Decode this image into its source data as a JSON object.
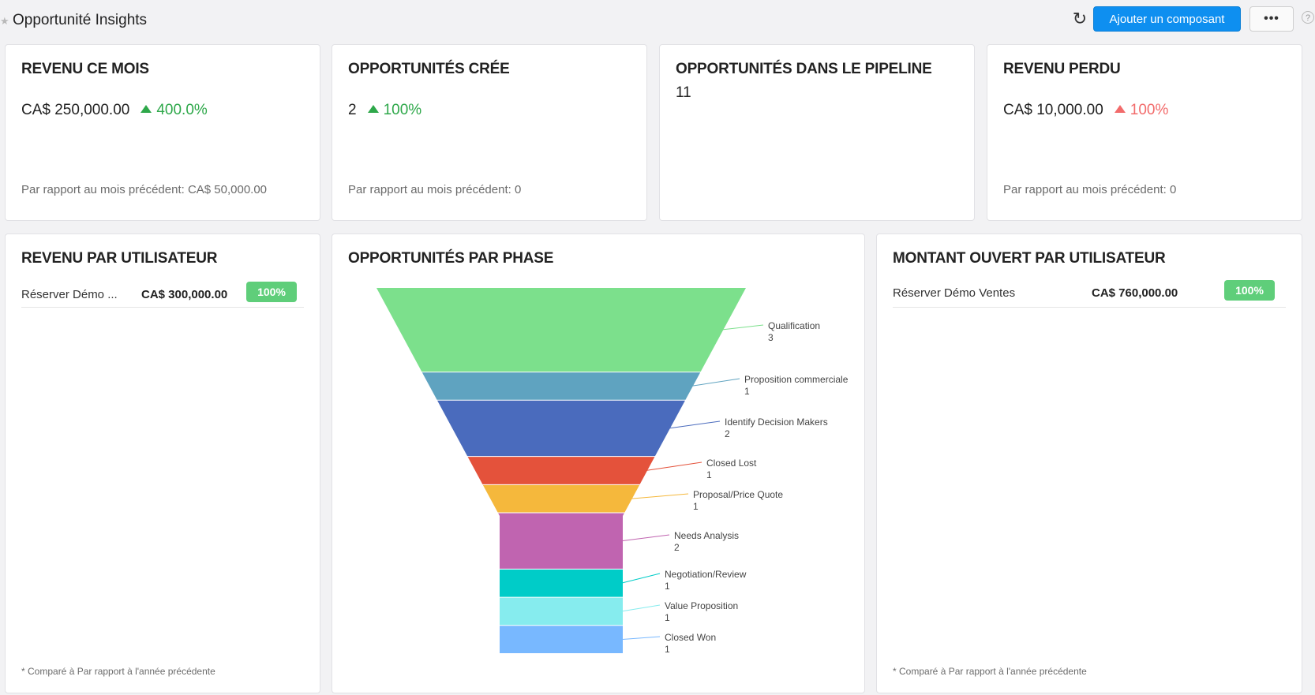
{
  "header": {
    "title": "Opportunité Insights",
    "refresh_icon": "↻",
    "add_label": "Ajouter un composant",
    "more_label": "•••",
    "help_label": "?"
  },
  "kpis": [
    {
      "title": "REVENU CE MOIS",
      "amount": "CA$ 250,000.00",
      "pct": "400.0%",
      "trend": "up",
      "trend_color": "#2ea84a",
      "footer": "Par rapport au mois précédent: CA$ 50,000.00"
    },
    {
      "title": "OPPORTUNITÉS CRÉE",
      "amount": "2",
      "pct": "100%",
      "trend": "up",
      "trend_color": "#2ea84a",
      "footer": "Par rapport au mois précédent: 0"
    },
    {
      "title": "OPPORTUNITÉS DANS LE PIPELINE",
      "amount": "11"
    },
    {
      "title": "REVENU PERDU",
      "amount": "CA$ 10,000.00",
      "pct": "100%",
      "trend": "up",
      "trend_color": "#f26b6b",
      "footer": "Par rapport au mois précédent: 0"
    }
  ],
  "revenue_by_user": {
    "title": "REVENU PAR UTILISATEUR",
    "rows": [
      {
        "name": "Réserver Démo ...",
        "amount": "CA$ 300,000.00",
        "pct": "100%"
      }
    ],
    "footnote": "* Comparé à Par rapport à l'année précédente"
  },
  "open_by_user": {
    "title": "MONTANT OUVERT PAR UTILISATEUR",
    "rows": [
      {
        "name": "Réserver Démo Ventes",
        "amount": "CA$ 760,000.00",
        "pct": "100%"
      }
    ],
    "footnote": "* Comparé à Par rapport à l'année précédente"
  },
  "funnel": {
    "title": "OPPORTUNITÉS PAR PHASE"
  },
  "chart_data": {
    "type": "funnel",
    "categories": [
      "Qualification",
      "Proposition commerciale",
      "Identify Decision Makers",
      "Closed Lost",
      "Proposal/Price Quote",
      "Needs Analysis",
      "Negotiation/Review",
      "Value Proposition",
      "Closed Won"
    ],
    "values": [
      3,
      1,
      2,
      1,
      1,
      2,
      1,
      1,
      1
    ],
    "colors": [
      "#7ce08c",
      "#5fa3c0",
      "#4a6bbd",
      "#e4523b",
      "#f5b83c",
      "#c064b0",
      "#00ccc8",
      "#86ecee",
      "#78b8ff"
    ],
    "title": "OPPORTUNITÉS PAR PHASE",
    "legend": "right"
  }
}
